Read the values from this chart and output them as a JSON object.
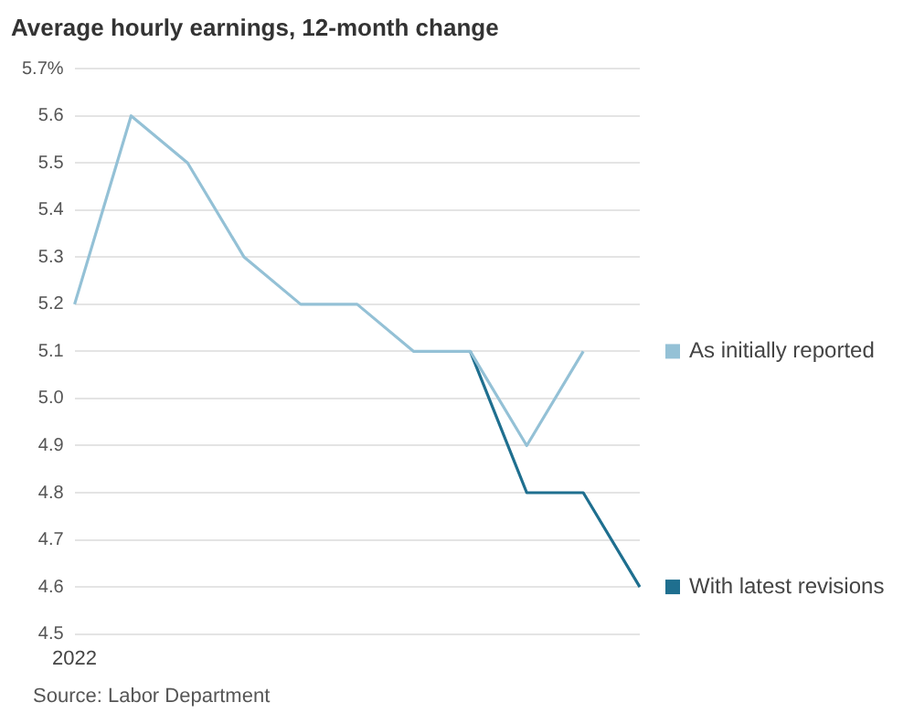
{
  "chart_data": {
    "type": "line",
    "title": "Average hourly earnings, 12-month change",
    "annotations": [
      "Source: Labor Department"
    ],
    "categories": [
      "2022",
      null,
      null,
      null,
      null,
      null,
      null,
      null,
      null,
      null,
      null
    ],
    "series": [
      {
        "name": "As initially reported",
        "color": "#94c1d6",
        "values": [
          5.2,
          5.6,
          5.5,
          5.3,
          5.2,
          5.2,
          5.1,
          5.1,
          4.9,
          5.1,
          null
        ]
      },
      {
        "name": "With latest revisions",
        "color": "#1f6f8f",
        "values": [
          null,
          null,
          null,
          null,
          null,
          null,
          null,
          5.1,
          4.8,
          4.8,
          4.6
        ]
      }
    ],
    "ylim": [
      4.5,
      5.7
    ],
    "yticks": [
      4.5,
      4.6,
      4.7,
      4.8,
      4.9,
      {
        "value": 5.0,
        "label": "5.0"
      },
      5.1,
      5.2,
      5.3,
      5.4,
      5.5,
      5.6,
      {
        "value": 5.7,
        "label": "5.7%"
      }
    ],
    "grid": "y",
    "legend": "right",
    "marker": "none",
    "line_style": "solid"
  }
}
